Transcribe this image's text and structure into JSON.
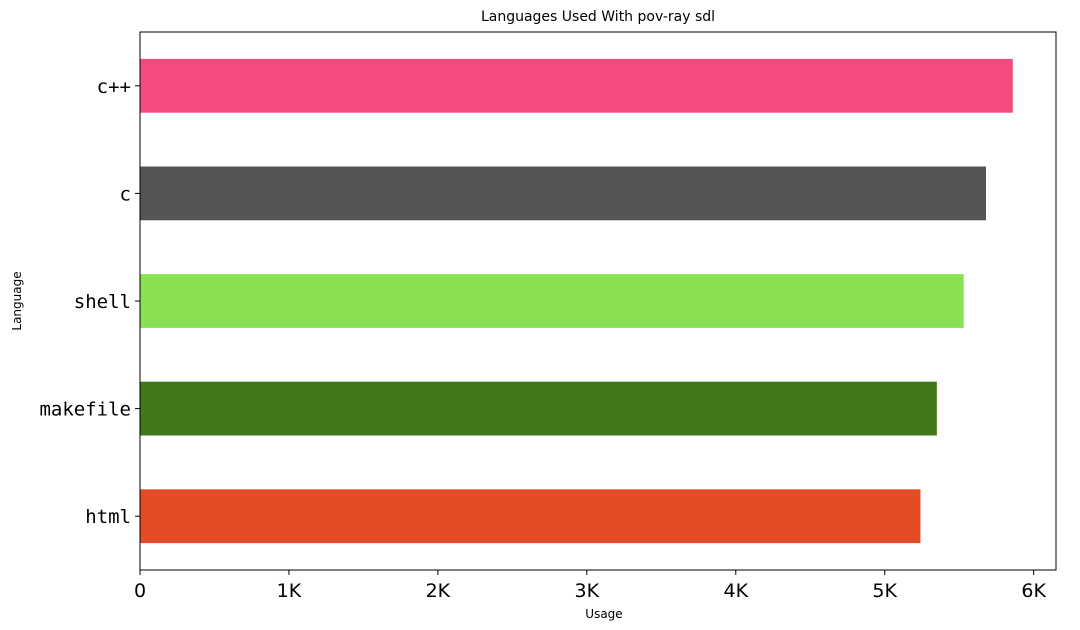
{
  "chart_data": {
    "type": "bar",
    "orientation": "horizontal",
    "title": "Languages Used With pov-ray sdl",
    "xlabel": "Usage",
    "ylabel": "Language",
    "categories": [
      "c++",
      "c",
      "shell",
      "makefile",
      "html"
    ],
    "values": [
      5860,
      5680,
      5530,
      5350,
      5240
    ],
    "colors": [
      "#f34b7d",
      "#555555",
      "#89e051",
      "#427819",
      "#e34c26"
    ],
    "xlim": [
      0,
      6150
    ],
    "xticks": [
      0,
      1000,
      2000,
      3000,
      4000,
      5000,
      6000
    ],
    "xtick_labels": [
      "0",
      "1K",
      "2K",
      "3K",
      "4K",
      "5K",
      "6K"
    ],
    "grid": false,
    "legend": "none"
  }
}
